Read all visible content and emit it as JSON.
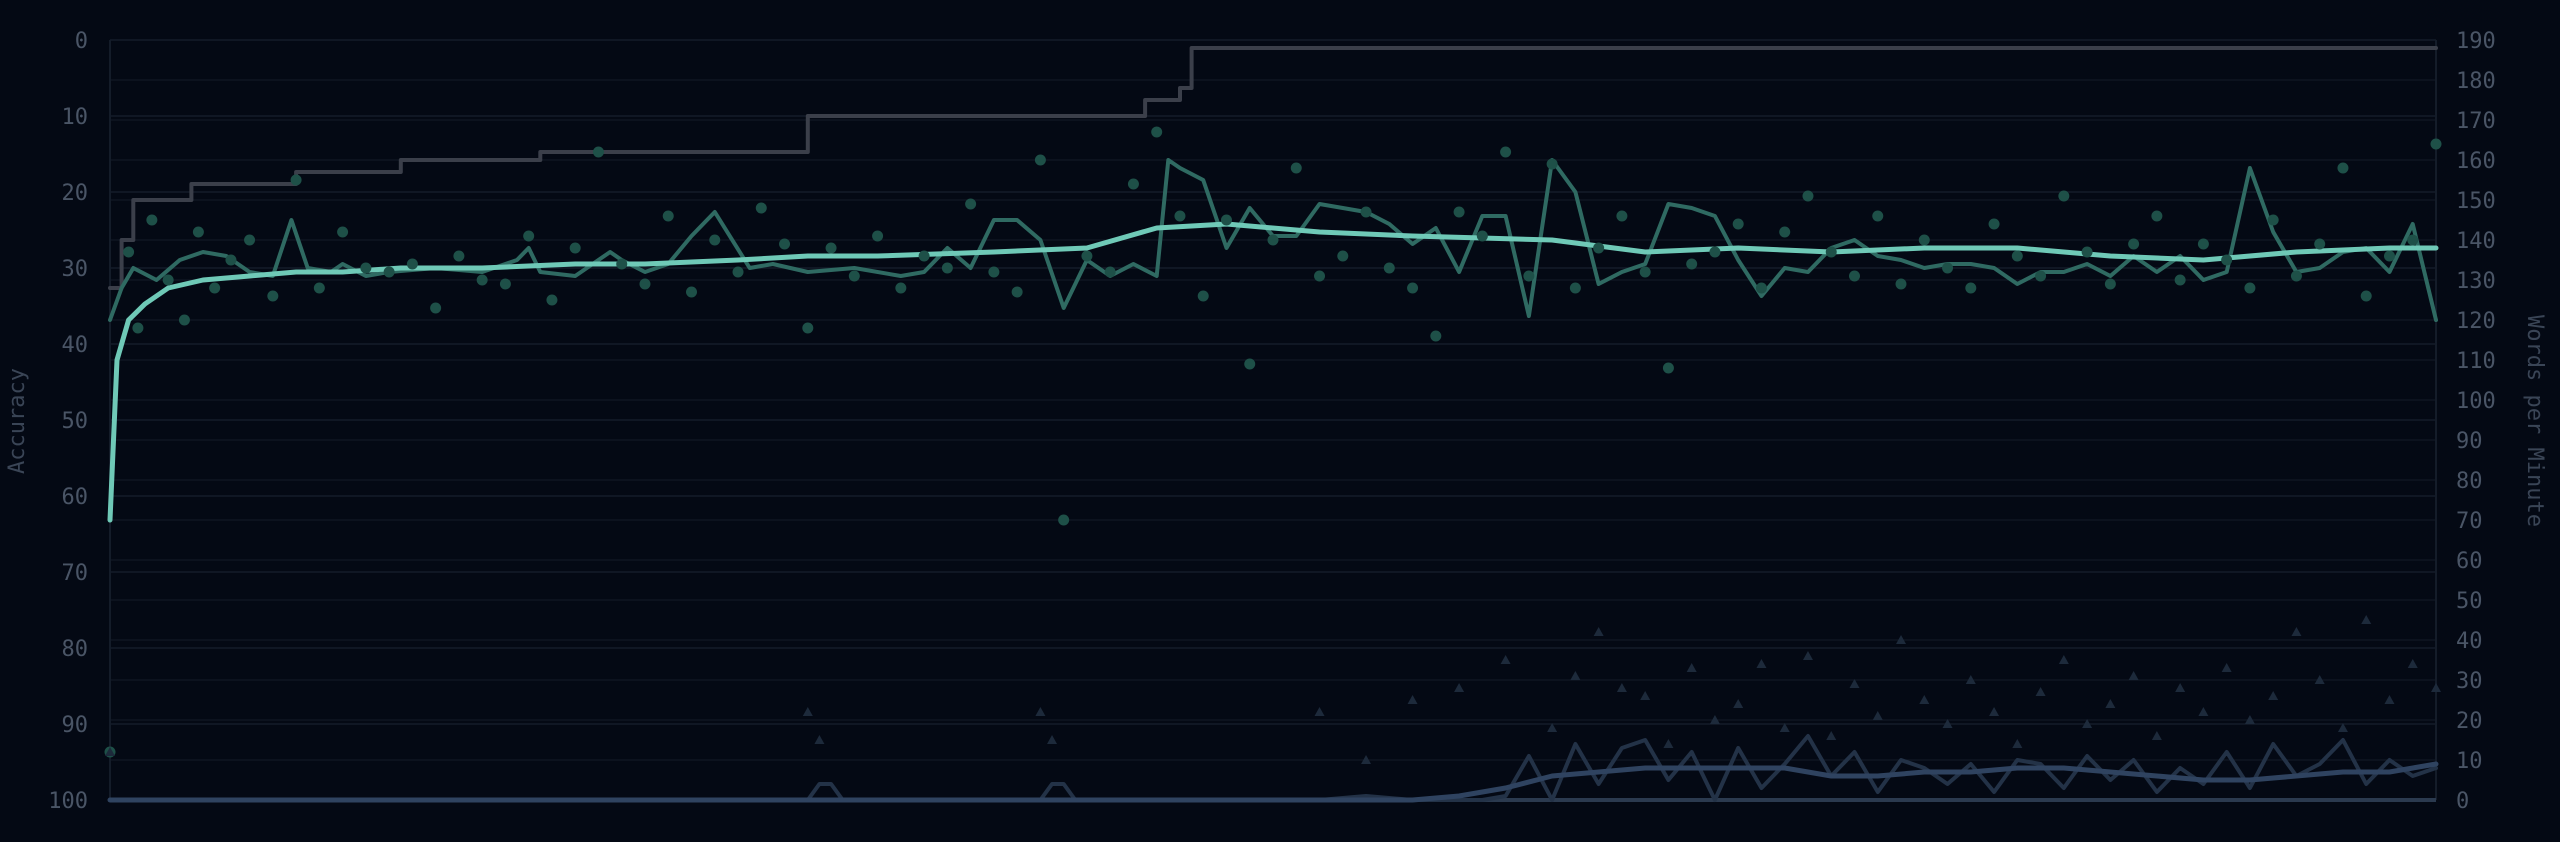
{
  "chart_data": {
    "type": "line",
    "title": "",
    "xlabel": "",
    "ylabel": "Accuracy",
    "y2label": "Words per Minute",
    "xlim": [
      0,
      1000
    ],
    "ylim": [
      100,
      0
    ],
    "y2lim": [
      0,
      190
    ],
    "y_ticks": [
      "0",
      "10",
      "20",
      "30",
      "40",
      "50",
      "60",
      "70",
      "80",
      "90",
      "100"
    ],
    "y2_ticks": [
      "0",
      "10",
      "20",
      "30",
      "40",
      "50",
      "60",
      "70",
      "80",
      "90",
      "100",
      "110",
      "120",
      "130",
      "140",
      "150",
      "160",
      "170",
      "180",
      "190"
    ],
    "grid": true,
    "legend": "none",
    "colors": {
      "background": "#040914",
      "grid": "#141c29",
      "baseline": "#2b3a4f",
      "wpm_points": "#1e5048",
      "wpm_raw": "#2f6a62",
      "wpm_avg": "#6fc9b7",
      "pb_step": "#3b3f4a",
      "error_points": "#1d2a3b",
      "error_raw": "#233247",
      "error_avg": "#2f4360"
    },
    "series": [
      {
        "axis": "y2",
        "style": "step",
        "x": [
          0,
          5,
          10,
          35,
          80,
          125,
          185,
          235,
          300,
          370,
          415,
          440,
          445,
          455,
          460,
          465,
          600,
          1000
        ],
        "y": [
          128,
          140,
          150,
          154,
          157,
          160,
          162,
          162,
          171,
          171,
          171,
          171,
          175,
          175,
          178,
          188,
          188,
          188
        ]
      },
      {
        "axis": "y2",
        "style": "raw",
        "x": [
          0,
          5,
          10,
          20,
          30,
          40,
          50,
          60,
          70,
          78,
          85,
          95,
          100,
          110,
          120,
          140,
          160,
          175,
          180,
          185,
          200,
          215,
          220,
          230,
          240,
          250,
          260,
          275,
          285,
          300,
          320,
          340,
          350,
          360,
          370,
          380,
          390,
          400,
          410,
          420,
          430,
          440,
          450,
          455,
          460,
          470,
          480,
          490,
          500,
          510,
          520,
          530,
          540,
          550,
          560,
          570,
          580,
          590,
          600,
          610,
          620,
          630,
          640,
          650,
          660,
          670,
          680,
          690,
          700,
          710,
          720,
          730,
          740,
          750,
          760,
          770,
          780,
          790,
          800,
          810,
          820,
          830,
          840,
          850,
          860,
          870,
          880,
          890,
          900,
          910,
          920,
          930,
          940,
          950,
          960,
          970,
          980,
          990,
          1000
        ],
        "y": [
          120,
          128,
          133,
          130,
          135,
          137,
          136,
          132,
          131,
          145,
          133,
          132,
          134,
          131,
          132,
          133,
          132,
          135,
          138,
          132,
          131,
          137,
          135,
          132,
          134,
          141,
          147,
          133,
          134,
          132,
          133,
          131,
          132,
          138,
          133,
          145,
          145,
          140,
          123,
          135,
          131,
          134,
          131,
          160,
          158,
          155,
          138,
          148,
          141,
          141,
          149,
          148,
          147,
          144,
          139,
          143,
          132,
          146,
          146,
          121,
          160,
          152,
          129,
          132,
          134,
          149,
          148,
          146,
          135,
          126,
          133,
          132,
          138,
          140,
          136,
          135,
          133,
          134,
          134,
          133,
          129,
          132,
          132,
          134,
          131,
          136,
          132,
          136,
          130,
          132,
          158,
          142,
          132,
          133,
          137,
          138,
          132,
          144,
          120
        ]
      },
      {
        "axis": "y2",
        "style": "avg",
        "x": [
          0,
          3,
          8,
          15,
          25,
          40,
          60,
          80,
          100,
          125,
          160,
          200,
          230,
          270,
          300,
          330,
          380,
          420,
          450,
          480,
          520,
          560,
          620,
          660,
          700,
          740,
          780,
          820,
          860,
          900,
          940,
          980,
          1000
        ],
        "y": [
          70,
          110,
          120,
          124,
          128,
          130,
          131,
          132,
          132,
          133,
          133,
          134,
          134,
          135,
          136,
          136,
          137,
          138,
          143,
          144,
          142,
          141,
          140,
          137,
          138,
          137,
          138,
          138,
          136,
          135,
          137,
          138,
          138
        ]
      },
      {
        "axis": "y2",
        "style": "points",
        "x": [
          0,
          8,
          12,
          18,
          25,
          32,
          38,
          45,
          52,
          60,
          70,
          80,
          90,
          100,
          110,
          120,
          130,
          140,
          150,
          160,
          170,
          180,
          190,
          200,
          210,
          220,
          230,
          240,
          250,
          260,
          270,
          280,
          290,
          300,
          310,
          320,
          330,
          340,
          350,
          360,
          370,
          380,
          390,
          400,
          410,
          420,
          430,
          440,
          450,
          460,
          470,
          480,
          490,
          500,
          510,
          520,
          530,
          540,
          550,
          560,
          570,
          580,
          590,
          600,
          610,
          620,
          630,
          640,
          650,
          660,
          670,
          680,
          690,
          700,
          710,
          720,
          730,
          740,
          750,
          760,
          770,
          780,
          790,
          800,
          810,
          820,
          830,
          840,
          850,
          860,
          870,
          880,
          890,
          900,
          910,
          920,
          930,
          940,
          950,
          960,
          970,
          980,
          990,
          1000
        ],
        "y": [
          12,
          137,
          118,
          145,
          130,
          120,
          142,
          128,
          135,
          140,
          126,
          155,
          128,
          142,
          133,
          132,
          134,
          123,
          136,
          130,
          129,
          141,
          125,
          138,
          162,
          134,
          129,
          146,
          127,
          140,
          132,
          148,
          139,
          118,
          138,
          131,
          141,
          128,
          136,
          133,
          149,
          132,
          127,
          160,
          70,
          136,
          132,
          154,
          167,
          146,
          126,
          145,
          109,
          140,
          158,
          131,
          136,
          147,
          133,
          128,
          116,
          147,
          141,
          162,
          131,
          159,
          128,
          138,
          146,
          132,
          108,
          134,
          137,
          144,
          128,
          142,
          151,
          137,
          131,
          146,
          129,
          140,
          133,
          128,
          144,
          136,
          131,
          151,
          137,
          129,
          139,
          146,
          130,
          139,
          135,
          128,
          145,
          131,
          139,
          158,
          126,
          136,
          140,
          164
        ]
      },
      {
        "axis": "y2",
        "style": "error-raw",
        "x": [
          0,
          300,
          305,
          310,
          315,
          400,
          405,
          410,
          415,
          520,
          540,
          560,
          570,
          590,
          600,
          610,
          620,
          630,
          640,
          650,
          660,
          670,
          680,
          690,
          700,
          710,
          720,
          730,
          740,
          750,
          760,
          770,
          780,
          790,
          800,
          810,
          820,
          830,
          840,
          850,
          860,
          870,
          880,
          890,
          900,
          910,
          920,
          930,
          940,
          950,
          960,
          970,
          980,
          990,
          1000
        ],
        "y": [
          0,
          0,
          4,
          4,
          0,
          0,
          4,
          4,
          0,
          0,
          1,
          0,
          0,
          0,
          1,
          11,
          0,
          14,
          4,
          13,
          15,
          5,
          12,
          0,
          13,
          3,
          9,
          16,
          6,
          12,
          2,
          10,
          8,
          4,
          9,
          2,
          10,
          9,
          3,
          11,
          5,
          10,
          2,
          8,
          4,
          12,
          3,
          14,
          6,
          9,
          15,
          4,
          10,
          6,
          8
        ]
      },
      {
        "axis": "y2",
        "style": "error-avg",
        "x": [
          0,
          560,
          580,
          600,
          620,
          640,
          660,
          680,
          700,
          720,
          740,
          760,
          780,
          800,
          820,
          840,
          860,
          880,
          900,
          920,
          940,
          960,
          980,
          1000
        ],
        "y": [
          0,
          0,
          1,
          3,
          6,
          7,
          8,
          8,
          8,
          8,
          6,
          6,
          7,
          7,
          8,
          8,
          7,
          6,
          5,
          5,
          6,
          7,
          7,
          9
        ]
      },
      {
        "axis": "y2",
        "style": "error-points",
        "x": [
          0,
          300,
          305,
          400,
          405,
          520,
          540,
          560,
          580,
          600,
          620,
          630,
          640,
          650,
          660,
          670,
          680,
          690,
          700,
          710,
          720,
          730,
          740,
          750,
          760,
          770,
          780,
          790,
          800,
          810,
          820,
          830,
          840,
          850,
          860,
          870,
          880,
          890,
          900,
          910,
          920,
          930,
          940,
          950,
          960,
          970,
          980,
          990,
          1000
        ],
        "y": [
          12,
          22,
          15,
          22,
          15,
          22,
          10,
          25,
          28,
          35,
          18,
          31,
          42,
          28,
          26,
          14,
          33,
          20,
          24,
          34,
          18,
          36,
          16,
          29,
          21,
          40,
          25,
          19,
          30,
          22,
          14,
          27,
          35,
          19,
          24,
          31,
          16,
          28,
          22,
          33,
          20,
          26,
          42,
          30,
          18,
          45,
          25,
          34,
          28
        ]
      }
    ]
  }
}
